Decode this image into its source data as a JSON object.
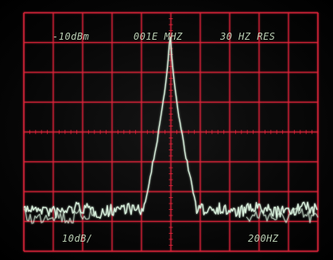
{
  "screen": {
    "reference_level": "-10dBm",
    "center_frequency": "001E MHZ",
    "resolution_bandwidth": "30 HZ RES",
    "vertical_scale": "10dB/",
    "horizontal_scale": "200HZ"
  },
  "colors": {
    "graticule": "#e0243a",
    "trace": "#d8f0dc",
    "readout_text": "#cfe6c8",
    "background": "#050505"
  },
  "graticule": {
    "columns": 10,
    "rows": 8
  }
}
